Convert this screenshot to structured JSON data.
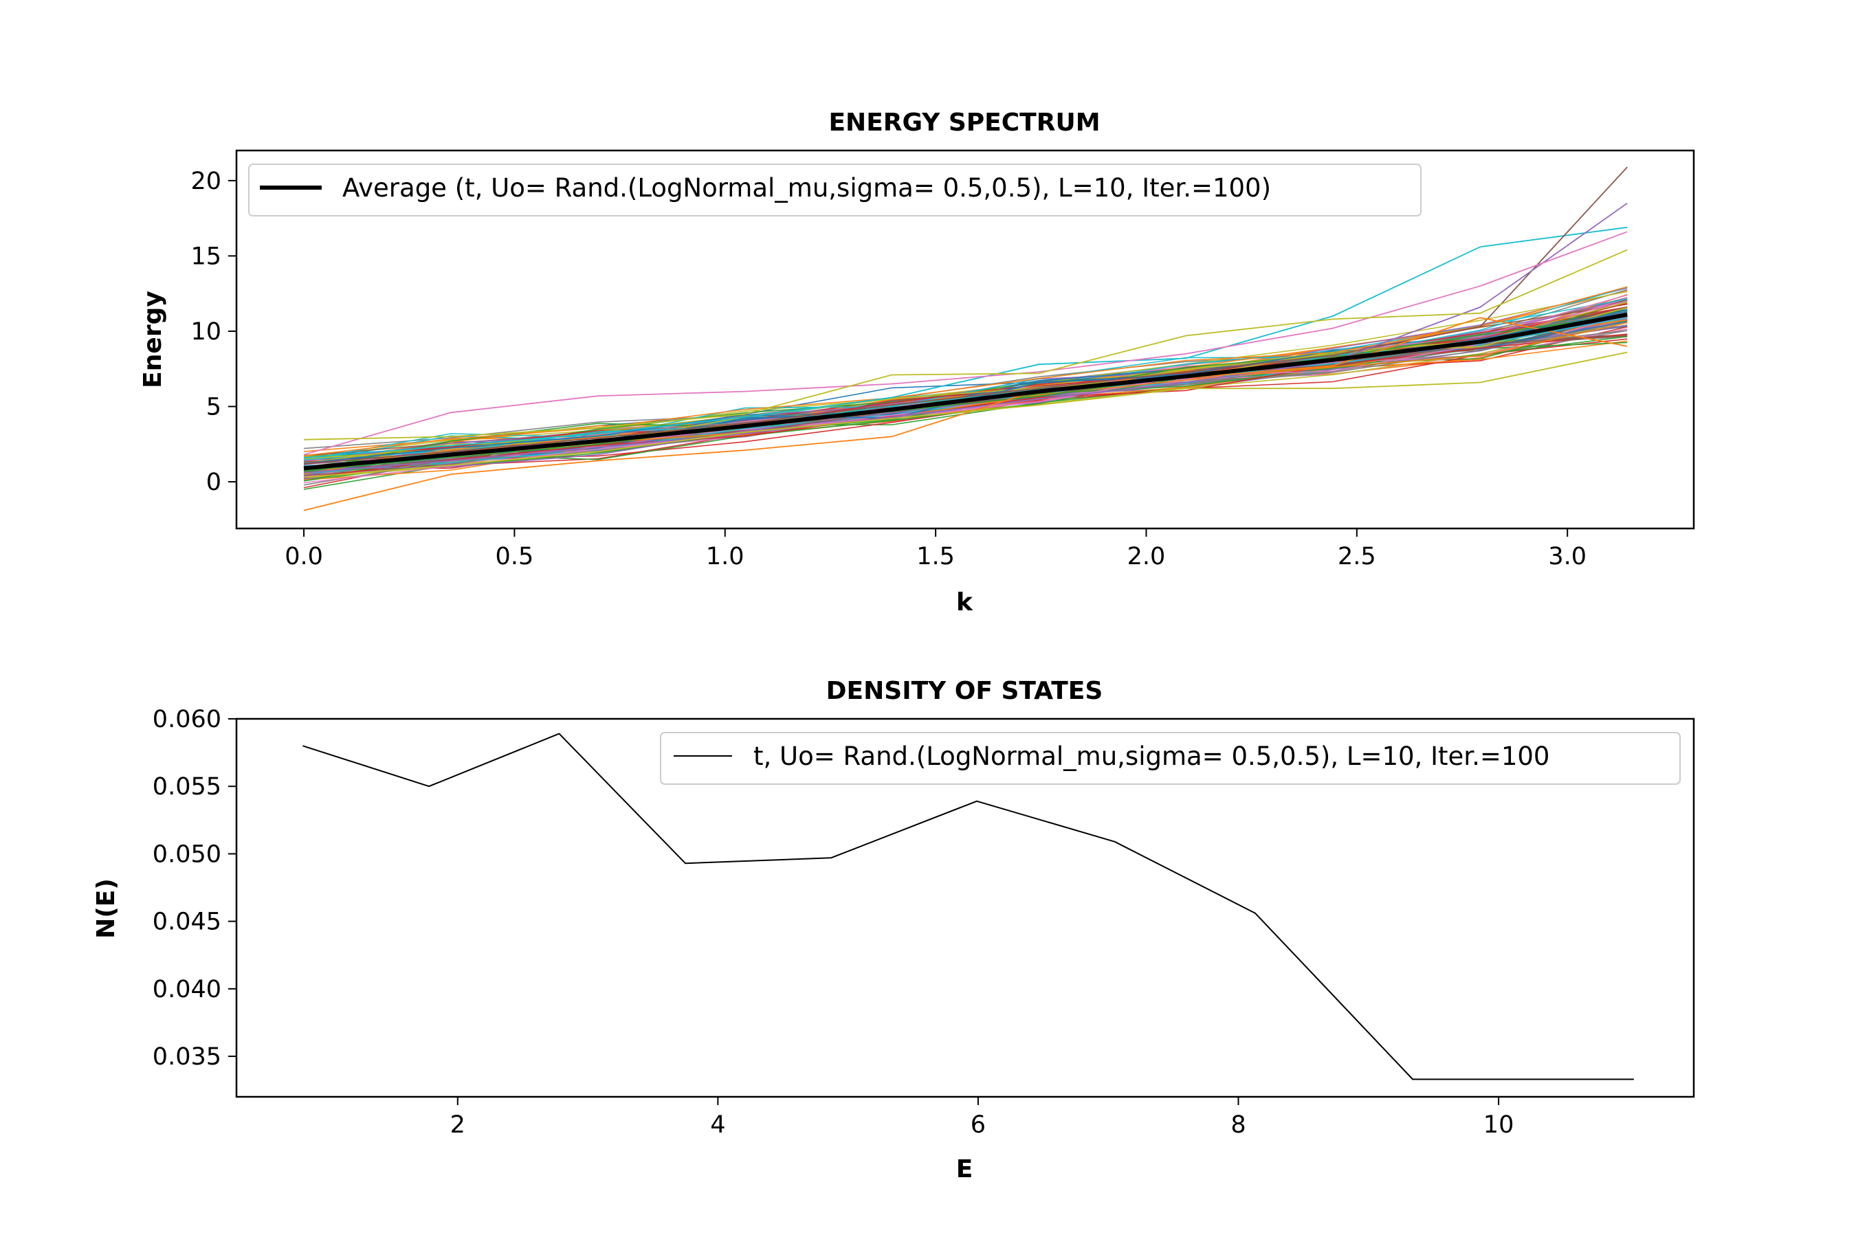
{
  "figure": {
    "panels": [
      {
        "title": "ENERGY SPECTRUM",
        "xlabel": "k",
        "ylabel": "Energy",
        "legend": "Average (t, Uo= Rand.(LogNormal_mu,sigma= 0.5,0.5), L=10, Iter.=100)",
        "xticks": [
          "0.0",
          "0.5",
          "1.0",
          "1.5",
          "2.0",
          "2.5",
          "3.0"
        ],
        "yticks": [
          "0",
          "5",
          "10",
          "15",
          "20"
        ]
      },
      {
        "title": "DENSITY OF STATES",
        "xlabel": "E",
        "ylabel": "N(E)",
        "legend": "t, Uo= Rand.(LogNormal_mu,sigma= 0.5,0.5), L=10, Iter.=100",
        "xticks": [
          "2",
          "4",
          "6",
          "8",
          "10"
        ],
        "yticks": [
          "0.035",
          "0.040",
          "0.045",
          "0.050",
          "0.055",
          "0.060"
        ]
      }
    ]
  },
  "chart_data": [
    {
      "type": "line",
      "title": "ENERGY SPECTRUM",
      "xlabel": "k",
      "ylabel": "Energy",
      "xlim": [
        -0.16,
        3.3
      ],
      "ylim": [
        -3.1,
        22.0
      ],
      "grid": false,
      "legend_position": "top-left",
      "x": [
        0.0,
        0.349,
        0.698,
        1.047,
        1.396,
        1.745,
        2.094,
        2.443,
        2.793,
        3.142
      ],
      "series": [
        {
          "name": "Average (t, Uo= Rand.(LogNormal_mu,sigma= 0.5,0.5), L=10, Iter.=100)",
          "color": "#000000",
          "values": [
            0.9,
            1.8,
            2.7,
            3.7,
            4.8,
            6.0,
            7.0,
            8.1,
            9.3,
            11.1
          ]
        }
      ],
      "realizations": {
        "count": 100,
        "colors": [
          "#1f77b4",
          "#ff7f0e",
          "#2ca02c",
          "#d62728",
          "#9467bd",
          "#8c564b",
          "#e377c2",
          "#7f7f7f",
          "#bcbd22",
          "#17becf"
        ],
        "spread": [
          1.05,
          1.05,
          0.95,
          0.9,
          0.9,
          0.85,
          0.85,
          0.95,
          1.15,
          1.6
        ],
        "notable": [
          {
            "color": "#17becf",
            "values": [
              1.6,
              2.4,
              3.2,
              4.3,
              5.6,
              7.8,
              8.2,
              11.0,
              15.6,
              16.9
            ]
          },
          {
            "color": "#8c564b",
            "values": [
              1.2,
              2.0,
              2.9,
              3.9,
              5.1,
              6.2,
              7.3,
              8.4,
              10.3,
              20.9
            ]
          },
          {
            "color": "#9467bd",
            "values": [
              0.6,
              1.4,
              2.3,
              3.2,
              4.3,
              5.5,
              6.6,
              8.0,
              11.6,
              18.5
            ]
          },
          {
            "color": "#e377c2",
            "values": [
              1.8,
              4.6,
              5.7,
              6.0,
              6.5,
              7.3,
              8.5,
              10.2,
              13.0,
              16.6
            ]
          },
          {
            "color": "#bcbd22",
            "values": [
              2.8,
              3.0,
              3.6,
              4.5,
              7.1,
              7.2,
              9.7,
              10.8,
              11.2,
              15.4
            ]
          },
          {
            "color": "#ff7f0e",
            "values": [
              -1.9,
              0.5,
              1.4,
              2.1,
              3.0,
              6.1,
              6.9,
              7.7,
              10.9,
              9.0
            ]
          },
          {
            "color": "#bcbd22",
            "values": [
              0.3,
              1.1,
              2.0,
              3.3,
              4.2,
              5.1,
              6.2,
              6.2,
              6.6,
              8.6
            ]
          }
        ]
      }
    },
    {
      "type": "line",
      "title": "DENSITY OF STATES",
      "xlabel": "E",
      "ylabel": "N(E)",
      "xlim": [
        0.3,
        11.5
      ],
      "ylim": [
        0.032,
        0.06
      ],
      "grid": false,
      "legend_position": "top-right",
      "series": [
        {
          "name": "t, Uo= Rand.(LogNormal_mu,sigma= 0.5,0.5), L=10, Iter.=100",
          "color": "#000000",
          "x": [
            0.81,
            1.78,
            2.78,
            3.75,
            4.87,
            5.99,
            7.05,
            8.13,
            9.34,
            11.04
          ],
          "values": [
            0.058,
            0.055,
            0.0589,
            0.0493,
            0.0497,
            0.0539,
            0.0509,
            0.0456,
            0.0333,
            0.0333
          ]
        }
      ]
    }
  ]
}
